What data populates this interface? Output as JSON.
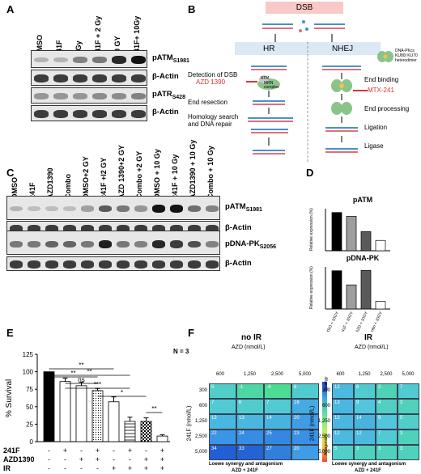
{
  "panels": {
    "A": "A",
    "B": "B",
    "C": "C",
    "D": "D",
    "E": "E",
    "F": "F"
  },
  "panelA": {
    "lanes": [
      "DMSO",
      "241F",
      "2 Gy",
      "241F + 2 Gy",
      "10 GY",
      "241F+ 10Gy"
    ],
    "blots": [
      {
        "label": "pATM",
        "sub": "S1981"
      },
      {
        "label": "β-Actin",
        "sub": ""
      },
      {
        "label": "pATR",
        "sub": "S428"
      },
      {
        "label": "β-Actin",
        "sub": ""
      }
    ]
  },
  "panelB": {
    "dsb": "DSB",
    "hr": "HR",
    "nhej": "NHEJ",
    "detection": "Detection of DSB",
    "azd": "AZD 1390",
    "atm": "ATM",
    "mrn": "MRN complex",
    "end_resection": "End resection",
    "homology": "Homology search and DNA repair",
    "end_binding": "End binding",
    "mtx": "MTX-241",
    "end_processing": "End processing",
    "ligation": "Ligation",
    "ligase": "Ligase",
    "dnapk_legend": "DNA-PKcs KU80/ KU70 heterodimer"
  },
  "panelC": {
    "lanes": [
      "DMSO",
      "241F",
      "AZD1390",
      "Combo",
      "DMSO+2 GY",
      "241F +l2 GY",
      "AZD 1390+2 GY",
      "Combo +2 GY",
      "DMSO + 10 Gy",
      "241F + 10 Gy",
      "AZD1390 + 10 Gy",
      "Combo + 10 Gy"
    ],
    "blots": [
      {
        "label": "pATM",
        "sub": "S1981"
      },
      {
        "label": "β-Actin",
        "sub": ""
      },
      {
        "label": "pDNA-PK",
        "sub": "S2056"
      },
      {
        "label": "β-Actin",
        "sub": ""
      }
    ]
  },
  "chart_data": [
    {
      "type": "bar",
      "title": "pATM",
      "ylabel": "Relative expression (%)",
      "categories": [
        "DMSO + 10GY",
        "241F + 10GY",
        "AZD + 10GY",
        "Combo + 10GY"
      ],
      "values": [
        100,
        90,
        50,
        27
      ],
      "colors": [
        "#000000",
        "#9e9e9e",
        "#5a5a5a",
        "#ffffff"
      ]
    },
    {
      "type": "bar",
      "title": "pDNA-PK",
      "ylabel": "Relative expression (%)",
      "categories": [
        "DMSO + 10GY",
        "241F + 10GY",
        "AZD + 10GY",
        "Combo + 10GY"
      ],
      "values": [
        100,
        63,
        101,
        20
      ],
      "colors": [
        "#000000",
        "#9e9e9e",
        "#5a5a5a",
        "#ffffff"
      ]
    },
    {
      "type": "bar",
      "ylabel": "% Survival",
      "yticks": [
        0,
        25,
        50,
        75,
        100,
        125
      ],
      "ylim": [
        0,
        125
      ],
      "values": [
        100,
        86,
        80,
        73,
        57,
        29,
        29,
        8
      ],
      "errors": [
        0,
        5,
        5,
        3,
        7,
        6,
        5,
        2
      ],
      "rows": {
        "labels": [
          "241F",
          "AZD1390",
          "IR"
        ],
        "matrix": [
          [
            "-",
            "+",
            "-",
            "+",
            "-",
            "+",
            "-",
            "+"
          ],
          [
            "-",
            "-",
            "+",
            "+",
            "-",
            "-",
            "+",
            "+"
          ],
          [
            "-",
            "-",
            "-",
            "-",
            "+",
            "+",
            "+",
            "+"
          ]
        ]
      },
      "significance": [
        "**",
        "**",
        "ns",
        "**",
        "***",
        "*",
        "**"
      ]
    }
  ],
  "panelF": {
    "left": {
      "title": "no IR",
      "n": "N = 3",
      "xlabel": "AZD (nmol/L)",
      "xticks": [
        "600",
        "1,250",
        "2,500",
        "5,000"
      ],
      "ylabel": "241F (nmol/L)",
      "yticks": [
        "300",
        "600",
        "1,250",
        "2,500",
        "5,000"
      ],
      "values": [
        [
          "5",
          "-1",
          "-4",
          "6"
        ],
        [
          "7",
          "6",
          "7",
          "16"
        ],
        [
          "13",
          "13",
          "14",
          "20"
        ],
        [
          "22",
          "24",
          "25",
          "23"
        ],
        [
          "34",
          "33",
          "27",
          "20"
        ]
      ],
      "caption1": "Loewe synergy and antagonism",
      "caption2": "AZD + 241F",
      "scale_top": "Synergy",
      "scale_bottom": "Antagonism"
    },
    "right": {
      "title": "IR",
      "xlabel": "AZD (nmol/L)",
      "xticks": [
        "600",
        "1,250",
        "2,500",
        "5,000"
      ],
      "ylabel": "241F (nmol/L)",
      "yticks": [
        "300",
        "600",
        "1,250",
        "2,500",
        "5,000"
      ],
      "values": [
        [
          "12",
          "6",
          "2",
          "7"
        ],
        [
          "13",
          "9",
          "4",
          "3"
        ],
        [
          "13",
          "14",
          "9",
          "5"
        ],
        [
          "12",
          "12",
          "7",
          "3"
        ],
        [
          "5",
          "3",
          "3",
          "3"
        ]
      ],
      "caption1": "Loewe synergy and antagonism",
      "caption2": "AZD + 241F",
      "scale_top": "Synergy",
      "scale_bottom": "Antagonism"
    }
  }
}
